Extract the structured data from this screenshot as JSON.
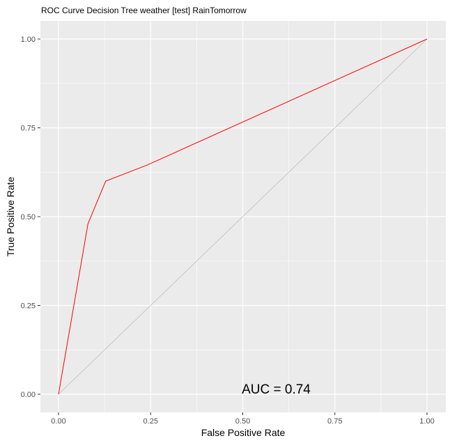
{
  "chart_data": {
    "type": "line",
    "title": "ROC Curve Decision Tree weather [test] RainTomorrow",
    "xlabel": "False Positive Rate",
    "ylabel": "True Positive Rate",
    "xlim": [
      0,
      1
    ],
    "ylim": [
      0,
      1
    ],
    "x_ticks": [
      "0.00",
      "0.25",
      "0.50",
      "0.75",
      "1.00"
    ],
    "y_ticks": [
      "0.00",
      "0.25",
      "0.50",
      "0.75",
      "1.00"
    ],
    "grid": true,
    "legend": "none",
    "series": [
      {
        "color": "#ff0000",
        "x": [
          0.0,
          0.08,
          0.128,
          0.24,
          1.0
        ],
        "y": [
          0.0,
          0.48,
          0.6,
          0.645,
          1.0
        ]
      },
      {
        "color": "#bdbdbd",
        "x": [
          0.0,
          1.0
        ],
        "y": [
          0.0,
          1.0
        ]
      }
    ],
    "annotation": {
      "text": "AUC = 0.74",
      "x": 0.5,
      "y": 0.0
    },
    "colors": {
      "panel_background": "#ebebeb",
      "grid_major": "#ffffff",
      "roc_line": "#ff0000",
      "diagonal": "#bdbdbd"
    }
  }
}
